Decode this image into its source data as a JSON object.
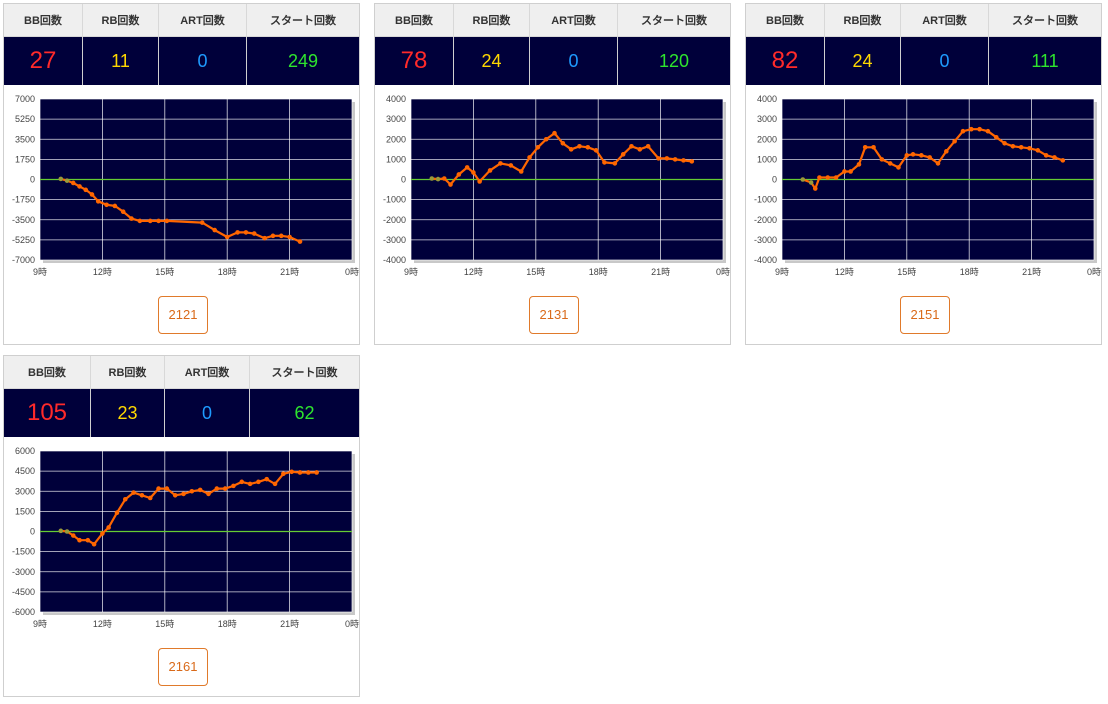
{
  "headers": {
    "bb": "BB回数",
    "rb": "RB回数",
    "art": "ART回数",
    "start": "スタート回数"
  },
  "colors": {
    "plot_bg": "#00003a",
    "line": "#ff6600",
    "zero_line": "#66cc33",
    "bb": "#ff2a2a",
    "rb": "#ffd800",
    "art": "#1e9bff",
    "start": "#2ee52e"
  },
  "machines": [
    {
      "id": "2121",
      "bb": "27",
      "rb": "11",
      "art": "0",
      "start": "249"
    },
    {
      "id": "2131",
      "bb": "78",
      "rb": "24",
      "art": "0",
      "start": "120"
    },
    {
      "id": "2151",
      "bb": "82",
      "rb": "24",
      "art": "0",
      "start": "111"
    },
    {
      "id": "2161",
      "bb": "105",
      "rb": "23",
      "art": "0",
      "start": "62"
    }
  ],
  "chart_data": [
    {
      "type": "line",
      "x_ticks": [
        9,
        12,
        15,
        18,
        21,
        24
      ],
      "x_tick_labels": [
        "9時",
        "12時",
        "15時",
        "18時",
        "21時",
        "0時"
      ],
      "xlim": [
        9,
        24
      ],
      "y_ticks": [
        7000,
        5250,
        3500,
        1750,
        0,
        -1750,
        -3500,
        -5250,
        -7000
      ],
      "ylim": [
        -7000,
        7000
      ],
      "grid": true,
      "x": [
        10.0,
        10.3,
        10.6,
        10.9,
        11.2,
        11.5,
        11.8,
        12.2,
        12.6,
        13.0,
        13.4,
        13.8,
        14.3,
        14.7,
        15.1,
        16.8,
        17.4,
        18.0,
        18.5,
        18.9,
        19.3,
        19.8,
        20.2,
        20.6,
        21.0,
        21.5
      ],
      "y": [
        50,
        -100,
        -300,
        -600,
        -900,
        -1300,
        -1900,
        -2200,
        -2300,
        -2800,
        -3400,
        -3600,
        -3600,
        -3600,
        -3600,
        -3750,
        -4400,
        -5000,
        -4600,
        -4600,
        -4700,
        -5100,
        -4900,
        -4900,
        -5000,
        -5400
      ]
    },
    {
      "type": "line",
      "x_ticks": [
        9,
        12,
        15,
        18,
        21,
        24
      ],
      "x_tick_labels": [
        "9時",
        "12時",
        "15時",
        "18時",
        "21時",
        "0時"
      ],
      "xlim": [
        9,
        24
      ],
      "y_ticks": [
        4000,
        3000,
        2000,
        1000,
        0,
        -1000,
        -2000,
        -3000,
        -4000
      ],
      "ylim": [
        -4000,
        4000
      ],
      "grid": true,
      "x": [
        10.0,
        10.3,
        10.6,
        10.9,
        11.3,
        11.7,
        12.0,
        12.3,
        12.8,
        13.3,
        13.8,
        14.3,
        14.7,
        15.1,
        15.5,
        15.9,
        16.3,
        16.7,
        17.1,
        17.5,
        17.9,
        18.3,
        18.8,
        19.2,
        19.6,
        20.0,
        20.4,
        20.9,
        21.3,
        21.7,
        22.1,
        22.5
      ],
      "y": [
        50,
        20,
        50,
        -250,
        250,
        600,
        350,
        -100,
        450,
        800,
        700,
        400,
        1100,
        1600,
        2000,
        2300,
        1800,
        1500,
        1650,
        1600,
        1450,
        850,
        800,
        1250,
        1650,
        1500,
        1650,
        1050,
        1050,
        1000,
        950,
        900
      ]
    },
    {
      "type": "line",
      "x_ticks": [
        9,
        12,
        15,
        18,
        21,
        24
      ],
      "x_tick_labels": [
        "9時",
        "12時",
        "15時",
        "18時",
        "21時",
        "0時"
      ],
      "xlim": [
        9,
        24
      ],
      "y_ticks": [
        4000,
        3000,
        2000,
        1000,
        0,
        -1000,
        -2000,
        -3000,
        -4000
      ],
      "ylim": [
        -4000,
        4000
      ],
      "grid": true,
      "x": [
        10.0,
        10.4,
        10.6,
        10.8,
        11.2,
        11.6,
        12.0,
        12.3,
        12.7,
        13.0,
        13.4,
        13.8,
        14.2,
        14.6,
        15.0,
        15.3,
        15.7,
        16.1,
        16.5,
        16.9,
        17.3,
        17.7,
        18.1,
        18.5,
        18.9,
        19.3,
        19.7,
        20.1,
        20.5,
        20.9,
        21.3,
        21.7,
        22.1,
        22.5
      ],
      "y": [
        0,
        -150,
        -450,
        100,
        100,
        100,
        400,
        400,
        750,
        1600,
        1600,
        1000,
        800,
        600,
        1200,
        1250,
        1200,
        1100,
        800,
        1400,
        1900,
        2400,
        2500,
        2500,
        2400,
        2100,
        1800,
        1650,
        1600,
        1550,
        1450,
        1200,
        1100,
        950
      ]
    },
    {
      "type": "line",
      "x_ticks": [
        9,
        12,
        15,
        18,
        21,
        24
      ],
      "x_tick_labels": [
        "9時",
        "12時",
        "15時",
        "18時",
        "21時",
        "0時"
      ],
      "xlim": [
        9,
        24
      ],
      "y_ticks": [
        6000,
        4500,
        3000,
        1500,
        0,
        -1500,
        -3000,
        -4500,
        -6000
      ],
      "ylim": [
        -6000,
        6000
      ],
      "grid": true,
      "x": [
        10.0,
        10.3,
        10.6,
        10.9,
        11.3,
        11.6,
        12.0,
        12.3,
        12.7,
        13.1,
        13.5,
        13.9,
        14.3,
        14.7,
        15.1,
        15.5,
        15.9,
        16.3,
        16.7,
        17.1,
        17.5,
        17.9,
        18.3,
        18.7,
        19.1,
        19.5,
        19.9,
        20.3,
        20.7,
        21.1,
        21.5,
        21.9,
        22.3
      ],
      "y": [
        50,
        0,
        -300,
        -650,
        -650,
        -950,
        -150,
        300,
        1400,
        2400,
        2900,
        2700,
        2500,
        3200,
        3200,
        2700,
        2800,
        3000,
        3100,
        2800,
        3200,
        3200,
        3400,
        3700,
        3550,
        3700,
        3900,
        3550,
        4300,
        4450,
        4400,
        4400,
        4400
      ]
    }
  ]
}
